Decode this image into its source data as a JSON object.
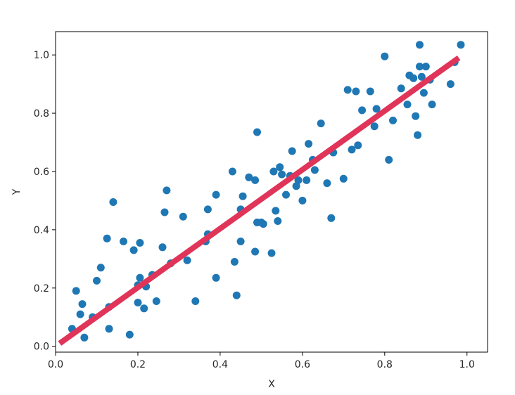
{
  "chart_data": {
    "type": "scatter",
    "xlabel": "X",
    "ylabel": "Y",
    "xlim": [
      0.0,
      1.05
    ],
    "ylim": [
      -0.02,
      1.08
    ],
    "x_ticks": [
      0.0,
      0.2,
      0.4,
      0.6,
      0.8,
      1.0
    ],
    "x_tick_labels": [
      "0.0",
      "0.2",
      "0.4",
      "0.6",
      "0.8",
      "1.0"
    ],
    "y_ticks": [
      0.0,
      0.2,
      0.4,
      0.6,
      0.8,
      1.0
    ],
    "y_tick_labels": [
      "0.0",
      "0.2",
      "0.4",
      "0.6",
      "0.8",
      "1.0"
    ],
    "grid": false,
    "legend": "none",
    "colors": {
      "points": "#1f77b4",
      "line": "#e03459"
    },
    "series": [
      {
        "type": "scatter",
        "x": [
          0.04,
          0.05,
          0.06,
          0.065,
          0.07,
          0.09,
          0.1,
          0.11,
          0.125,
          0.13,
          0.13,
          0.14,
          0.165,
          0.18,
          0.19,
          0.2,
          0.2,
          0.205,
          0.205,
          0.215,
          0.22,
          0.235,
          0.245,
          0.26,
          0.265,
          0.27,
          0.28,
          0.31,
          0.32,
          0.34,
          0.365,
          0.37,
          0.37,
          0.39,
          0.39,
          0.43,
          0.435,
          0.44,
          0.45,
          0.45,
          0.455,
          0.47,
          0.485,
          0.485,
          0.49,
          0.49,
          0.5,
          0.505,
          0.525,
          0.53,
          0.535,
          0.54,
          0.545,
          0.55,
          0.56,
          0.57,
          0.575,
          0.585,
          0.59,
          0.6,
          0.61,
          0.615,
          0.625,
          0.63,
          0.645,
          0.66,
          0.67,
          0.675,
          0.7,
          0.71,
          0.72,
          0.73,
          0.735,
          0.745,
          0.765,
          0.775,
          0.78,
          0.8,
          0.81,
          0.82,
          0.84,
          0.855,
          0.86,
          0.87,
          0.875,
          0.88,
          0.885,
          0.885,
          0.89,
          0.895,
          0.9,
          0.91,
          0.915,
          0.96,
          0.97,
          0.985
        ],
        "y": [
          0.06,
          0.19,
          0.11,
          0.145,
          0.03,
          0.1,
          0.225,
          0.27,
          0.37,
          0.135,
          0.06,
          0.495,
          0.36,
          0.04,
          0.33,
          0.15,
          0.21,
          0.355,
          0.235,
          0.13,
          0.205,
          0.245,
          0.155,
          0.34,
          0.46,
          0.535,
          0.285,
          0.445,
          0.295,
          0.155,
          0.36,
          0.385,
          0.47,
          0.235,
          0.52,
          0.6,
          0.29,
          0.175,
          0.36,
          0.47,
          0.515,
          0.58,
          0.325,
          0.57,
          0.735,
          0.425,
          0.425,
          0.42,
          0.32,
          0.6,
          0.465,
          0.43,
          0.615,
          0.59,
          0.52,
          0.585,
          0.67,
          0.55,
          0.57,
          0.5,
          0.57,
          0.695,
          0.64,
          0.605,
          0.765,
          0.56,
          0.44,
          0.665,
          0.575,
          0.88,
          0.675,
          0.875,
          0.69,
          0.81,
          0.875,
          0.755,
          0.815,
          0.995,
          0.64,
          0.775,
          0.885,
          0.83,
          0.93,
          0.92,
          0.79,
          0.725,
          1.035,
          0.96,
          0.925,
          0.87,
          0.96,
          0.915,
          0.83,
          0.9,
          0.975,
          1.035
        ]
      },
      {
        "type": "line",
        "x": [
          0.01,
          0.98
        ],
        "y": [
          0.01,
          0.99
        ]
      }
    ]
  }
}
